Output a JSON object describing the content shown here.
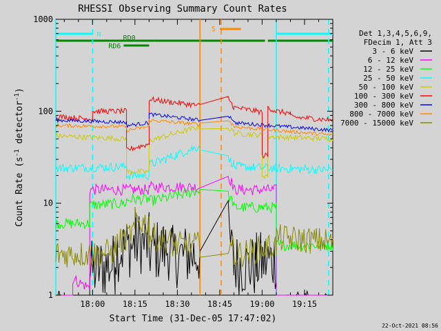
{
  "chart_data": {
    "type": "line",
    "title": "RHESSI Observing Summary Count Rates",
    "xlabel": "Start Time (31-Dec-05 17:47:02)",
    "ylabel_main": "Count Rate (s",
    "ylabel_sup1": "-1",
    "ylabel_mid": " detector",
    "ylabel_sup2": "-1",
    "ylabel_end": ")",
    "y_scale": "log",
    "ylim": [
      1,
      1000
    ],
    "xlim_min": [
      -13,
      85
    ],
    "x_ticks": [
      {
        "min": 0,
        "label": "18:00"
      },
      {
        "min": 15,
        "label": "18:15"
      },
      {
        "min": 30,
        "label": "18:30"
      },
      {
        "min": 45,
        "label": "18:45"
      },
      {
        "min": 60,
        "label": "19:00"
      },
      {
        "min": 75,
        "label": "19:15"
      }
    ],
    "y_ticks": [
      {
        "value": 1,
        "label": "1"
      },
      {
        "value": 10,
        "label": "10"
      },
      {
        "value": 100,
        "label": "100"
      },
      {
        "value": 1000,
        "label": "1000"
      }
    ],
    "legend": {
      "position": "right",
      "header": [
        "Det 1,3,4,5,6,9,",
        "FDecim 1, Att 3"
      ],
      "entries": [
        {
          "label": "3 - 6 keV",
          "color": "#000000"
        },
        {
          "label": "6 - 12 keV",
          "color": "#ff00ff"
        },
        {
          "label": "12 - 25 keV",
          "color": "#00ff00"
        },
        {
          "label": "25 - 50 keV",
          "color": "#00ffff"
        },
        {
          "label": "50 - 100 keV",
          "color": "#cccc00"
        },
        {
          "label": "100 - 300 keV",
          "color": "#ff0000"
        },
        {
          "label": "300 - 800 keV",
          "color": "#0000ff"
        },
        {
          "label": "800 - 7000 keV",
          "color": "#ff8800"
        },
        {
          "label": "7000 - 15000 keV",
          "color": "#888800"
        }
      ]
    },
    "flags": [
      {
        "label": "N",
        "color": "#00ffff",
        "row": 1,
        "segments": [
          [
            -13,
            0
          ],
          [
            65,
            85
          ]
        ]
      },
      {
        "label": "S",
        "color": "#ff8800",
        "row": 0,
        "segments": [
          [
            45,
            52.5
          ]
        ]
      },
      {
        "label": "RD0",
        "color": "#008800",
        "row": 2,
        "segments": [
          [
            -13,
            22
          ],
          [
            22,
            61
          ],
          [
            62,
            85
          ]
        ]
      },
      {
        "label": "RD6",
        "color": "#008800",
        "row": 3,
        "segments": [
          [
            11,
            20
          ]
        ]
      }
    ],
    "vertical_lines": [
      {
        "min": -13,
        "color": "#00ffff",
        "style": "solid"
      },
      {
        "min": 0,
        "color": "#00ffff",
        "style": "dashed"
      },
      {
        "min": 65,
        "color": "#00ffff",
        "style": "solid"
      },
      {
        "min": 83.5,
        "color": "#00ffff",
        "style": "dashed"
      },
      {
        "min": 38,
        "color": "#ff8800",
        "style": "solid"
      },
      {
        "min": 45.5,
        "color": "#ff8800",
        "style": "dashed"
      }
    ],
    "gap_min": [
      38,
      48
    ],
    "series": [
      {
        "name": "3 - 6 keV",
        "color": "#000000",
        "segs": [
          [
            -13,
            -1,
            0.5,
            0.5
          ],
          [
            -1,
            8,
            1.8,
            2.2
          ],
          [
            8,
            15,
            3,
            3.5
          ],
          [
            15,
            20,
            3.8,
            3.6
          ],
          [
            20,
            28,
            3,
            3.2
          ],
          [
            28,
            38,
            2.6,
            2.8
          ],
          [
            48,
            50,
            5,
            2.2
          ],
          [
            50,
            58,
            2.2,
            2
          ],
          [
            58,
            65,
            2.2,
            2.5
          ],
          [
            65,
            85,
            0.5,
            0.5
          ]
        ],
        "noise": 0.35
      },
      {
        "name": "6 - 12 keV",
        "color": "#ff00ff",
        "segs": [
          [
            -13,
            -7,
            0.5,
            0.5
          ],
          [
            -7,
            -1,
            1.5,
            1.2
          ],
          [
            -1,
            20,
            14,
            14
          ],
          [
            20,
            38,
            15,
            15
          ],
          [
            48,
            50,
            20,
            15
          ],
          [
            50,
            65,
            14,
            14
          ],
          [
            65,
            85,
            0.5,
            0.5
          ]
        ],
        "noise": 0.06
      },
      {
        "name": "12 - 25 keV",
        "color": "#00ff00",
        "segs": [
          [
            -13,
            -1,
            6,
            6
          ],
          [
            -1,
            12,
            9.5,
            10
          ],
          [
            12,
            20,
            11,
            11
          ],
          [
            20,
            30,
            10.5,
            12
          ],
          [
            30,
            38,
            12,
            14
          ],
          [
            48,
            50,
            12,
            10
          ],
          [
            50,
            60,
            9,
            9
          ],
          [
            60,
            65,
            9,
            9
          ],
          [
            65,
            85,
            3.5,
            3.5
          ]
        ],
        "noise": 0.06
      },
      {
        "name": "25 - 50 keV",
        "color": "#00ffff",
        "segs": [
          [
            -13,
            12,
            24,
            25
          ],
          [
            12,
            20,
            20,
            20
          ],
          [
            20,
            38,
            26,
            42
          ],
          [
            48,
            50,
            30,
            27
          ],
          [
            50,
            65,
            25,
            24
          ],
          [
            65,
            85,
            24,
            23
          ]
        ],
        "noise": 0.05
      },
      {
        "name": "50 - 100 keV",
        "color": "#cccc00",
        "segs": [
          [
            -13,
            12,
            54,
            50
          ],
          [
            12,
            20,
            22,
            22
          ],
          [
            20,
            38,
            48,
            68
          ],
          [
            48,
            50,
            65,
            60
          ],
          [
            50,
            60,
            58,
            55
          ],
          [
            60,
            62,
            20,
            20
          ],
          [
            62,
            85,
            53,
            50
          ]
        ],
        "noise": 0.03
      },
      {
        "name": "100 - 300 keV",
        "color": "#ff0000",
        "segs": [
          [
            -13,
            0,
            88,
            82
          ],
          [
            0,
            12,
            100,
            100
          ],
          [
            12,
            20,
            38,
            44
          ],
          [
            20,
            38,
            135,
            115
          ],
          [
            48,
            50,
            140,
            110
          ],
          [
            50,
            60,
            110,
            98
          ],
          [
            60,
            62,
            33,
            33
          ],
          [
            62,
            65,
            110,
            100
          ],
          [
            65,
            70,
            100,
            95
          ],
          [
            70,
            85,
            87,
            80
          ]
        ],
        "noise": 0.03
      },
      {
        "name": "300 - 800 keV",
        "color": "#0000ff",
        "segs": [
          [
            -13,
            12,
            80,
            76
          ],
          [
            12,
            20,
            70,
            75
          ],
          [
            20,
            38,
            93,
            80
          ],
          [
            48,
            50,
            90,
            80
          ],
          [
            50,
            85,
            75,
            62
          ]
        ],
        "noise": 0.02
      },
      {
        "name": "800 - 7000 keV",
        "color": "#ff8800",
        "segs": [
          [
            -13,
            12,
            70,
            68
          ],
          [
            12,
            20,
            62,
            68
          ],
          [
            20,
            38,
            80,
            72
          ],
          [
            48,
            50,
            80,
            70
          ],
          [
            50,
            85,
            68,
            55
          ]
        ],
        "noise": 0.02
      },
      {
        "name": "7000 - 15000 keV",
        "color": "#888800",
        "segs": [
          [
            -13,
            0,
            2.8,
            2.8
          ],
          [
            0,
            8,
            2.8,
            3
          ],
          [
            8,
            15,
            3.5,
            5
          ],
          [
            15,
            20,
            6.5,
            6
          ],
          [
            20,
            28,
            4.5,
            3.8
          ],
          [
            28,
            38,
            3.5,
            3.5
          ],
          [
            48,
            50,
            4,
            3
          ],
          [
            50,
            65,
            2.7,
            3.5
          ],
          [
            65,
            85,
            4.2,
            3.8
          ]
        ],
        "noise": 0.15
      }
    ]
  },
  "footer": {
    "timestamp": "22-Oct-2021 08:56"
  }
}
